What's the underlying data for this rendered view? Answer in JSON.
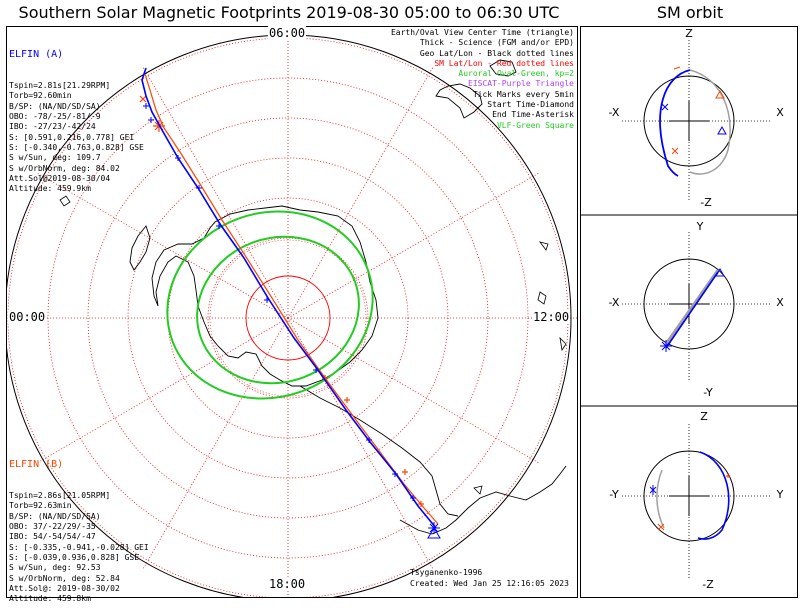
{
  "title": "Southern Solar Magnetic Footprints 2019-08-30 05:00 to 06:30 UTC",
  "orbit_title": "SM orbit",
  "colors": {
    "elfin_a": "#0000ff",
    "elfin_b": "#ff4500",
    "oval": "#22cc22",
    "sm_grid": "#ff0000",
    "geo_grid": "#000000",
    "eiscat": "#b040ff",
    "vlf": "#22cc22",
    "orbit_gray": "#a0a0a0"
  },
  "mlt_labels": {
    "top": "06:00",
    "left": "00:00",
    "right": "12:00",
    "bottom": "18:00"
  },
  "elfin_a": {
    "name": "ELFIN (A)",
    "lines": [
      "Tspin=2.81s[21.29RPM]",
      "Torb=92.60min",
      "B/SP: (NA/ND/SD/SA)",
      "OBO: -78/-25/-81/-9",
      "IBO: -27/23/-42/24",
      "S: [0.591,0.216,0.778] GEI",
      "S: [-0.340,-0.763,0.828] GSE",
      "S w/Sun, deg: 109.7",
      "S w/OrbNorm, deg: 84.02",
      "Att.Sol@2019-08-30/04",
      "Altitude: 459.9km"
    ]
  },
  "elfin_b": {
    "name": "ELFIN (B)",
    "lines": [
      "Tspin=2.86s[21.05RPM]",
      "Torb=92.63min",
      "B/SP: (NA/ND/SD/SA)",
      "OBO: 37/-22/29/-35",
      "IBO: 54/-54/54/-47",
      "S: [-0.335,-0.941,-0.028] GEI",
      "S: [-0.039,0.936,0.828] GSE",
      "S w/Sun, deg: 92.53",
      "S w/OrbNorm, deg: 52.84",
      "Att.Sol@: 2019-08-30/02",
      "Altitude: 459.8km"
    ]
  },
  "legend": [
    {
      "text": "Earth/Oval View Center Time (triangle)",
      "color": "#000000"
    },
    {
      "text": "Thick - Science (FGM and/or EPD)",
      "color": "#000000"
    },
    {
      "text": "Geo Lat/Lon - Black dotted lines",
      "color": "#000000"
    },
    {
      "text": "SM Lat/Lon - Red dotted lines",
      "color": "#ff0000"
    },
    {
      "text": "Auroral Oval-Green, kp=2",
      "color": "#22cc22"
    },
    {
      "text": "EISCAT-Purple Triangle",
      "color": "#b040ff"
    },
    {
      "text": "Tick Marks every 5min",
      "color": "#000000"
    },
    {
      "text": "Start Time-Diamond",
      "color": "#000000"
    },
    {
      "text": "End Time-Asterisk",
      "color": "#000000"
    },
    {
      "text": "VLF-Green Square",
      "color": "#22cc22"
    }
  ],
  "credit": {
    "model": "Tsyganenko-1996",
    "created": "Created: Wed Jan 25 12:16:05 2023"
  },
  "orbit_panels": [
    {
      "name": "xz",
      "top_label": "Z",
      "bottom_label": "-Z",
      "left_label": "-X",
      "right_label": "X"
    },
    {
      "name": "xy",
      "top_label": "Y",
      "bottom_label": "-Y",
      "left_label": "-X",
      "right_label": "X"
    },
    {
      "name": "yz",
      "top_label": "Z",
      "bottom_label": "-Z",
      "left_label": "-Y",
      "right_label": "Y"
    }
  ]
}
